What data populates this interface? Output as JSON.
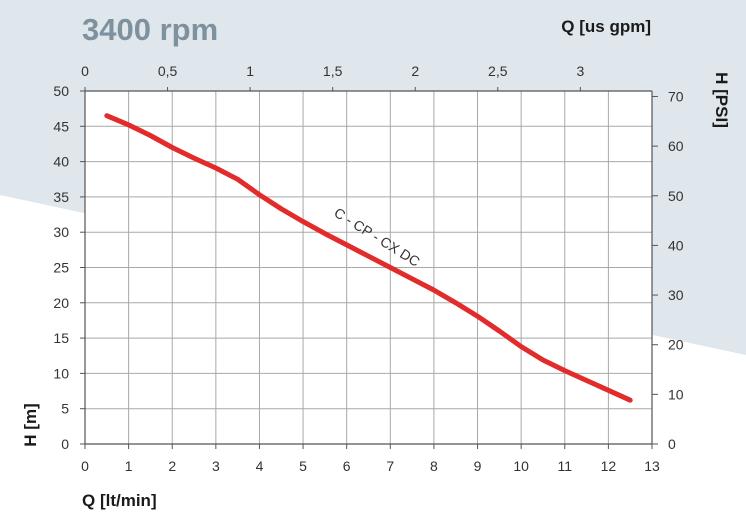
{
  "header": {
    "speed_label": "3400 rpm"
  },
  "colors": {
    "background_band": "#dfe6ec",
    "speed_label": "#7e919f",
    "curve": "#e32b2b",
    "grid": "#a8a8a8",
    "axis": "#555555"
  },
  "chart_data": {
    "type": "line",
    "xlabel": "Q [lt/min]",
    "x2label": "Q [us gpm]",
    "ylabel": "H [m]",
    "y2label": "H [PSI]",
    "xlim": [
      0,
      13
    ],
    "ylim": [
      0,
      50
    ],
    "x2lim": [
      0,
      3.434
    ],
    "y2lim": [
      0,
      71.1
    ],
    "x_ticks": [
      "0",
      "1",
      "2",
      "3",
      "4",
      "5",
      "6",
      "7",
      "8",
      "9",
      "10",
      "11",
      "12",
      "13"
    ],
    "y_ticks": [
      "0",
      "5",
      "10",
      "15",
      "20",
      "25",
      "30",
      "35",
      "40",
      "45",
      "50"
    ],
    "x2_ticks": [
      {
        "label": "0",
        "value": 0
      },
      {
        "label": "0,5",
        "value": 0.5
      },
      {
        "label": "1",
        "value": 1
      },
      {
        "label": "1,5",
        "value": 1.5
      },
      {
        "label": "2",
        "value": 2
      },
      {
        "label": "2,5",
        "value": 2.5
      },
      {
        "label": "3",
        "value": 3
      }
    ],
    "y2_ticks": [
      {
        "label": "0",
        "value": 0
      },
      {
        "label": "10",
        "value": 10
      },
      {
        "label": "20",
        "value": 20
      },
      {
        "label": "30",
        "value": 30
      },
      {
        "label": "40",
        "value": 40
      },
      {
        "label": "50",
        "value": 50
      },
      {
        "label": "60",
        "value": 60
      },
      {
        "label": "70",
        "value": 70
      }
    ],
    "grid": true,
    "series": [
      {
        "name": "C - CP - CX DC",
        "x": [
          0.5,
          1,
          1.5,
          2,
          2.5,
          3,
          3.5,
          4,
          4.5,
          5,
          5.5,
          6,
          6.5,
          7,
          7.5,
          8,
          8.5,
          9,
          9.5,
          10,
          10.5,
          11,
          11.5,
          12,
          12.5
        ],
        "y": [
          46.5,
          45.2,
          43.7,
          42,
          40.5,
          39.1,
          37.5,
          35.3,
          33.3,
          31.5,
          29.8,
          28.2,
          26.6,
          25,
          23.4,
          21.8,
          20,
          18.1,
          16,
          13.8,
          11.9,
          10.4,
          9,
          7.6,
          6.2
        ]
      }
    ]
  }
}
